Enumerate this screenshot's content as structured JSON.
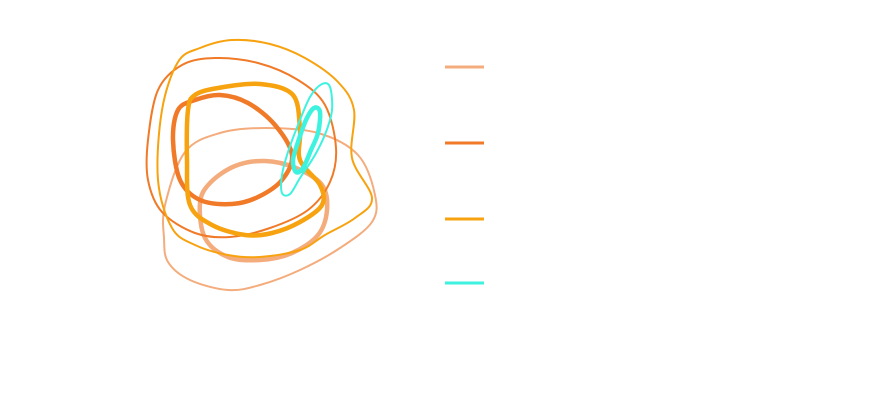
{
  "chart_data": {
    "type": "contour",
    "title": "",
    "xlabel": "",
    "ylabel": "",
    "axes_visible": false,
    "grid": false,
    "legend_placement": "right",
    "legend_labels_visible": false,
    "series": [
      {
        "color": "#F4AC7C",
        "levels": [
          {
            "level": "outer",
            "closed": true,
            "points": [
              [
                165,
                205
              ],
              [
                185,
                152
              ],
              [
                220,
                133
              ],
              [
                265,
                128
              ],
              [
                318,
                133
              ],
              [
                358,
                155
              ],
              [
                375,
                195
              ],
              [
                372,
                222
              ],
              [
                340,
                248
              ],
              [
                300,
                270
              ],
              [
                260,
                285
              ],
              [
                228,
                290
              ],
              [
                190,
                280
              ],
              [
                168,
                262
              ],
              [
                164,
                238
              ]
            ]
          },
          {
            "level": "inner",
            "closed": true,
            "points": [
              [
                200,
                203
              ],
              [
                210,
                183
              ],
              [
                235,
                166
              ],
              [
                265,
                161
              ],
              [
                296,
                168
              ],
              [
                322,
                185
              ],
              [
                327,
                210
              ],
              [
                318,
                235
              ],
              [
                292,
                253
              ],
              [
                260,
                260
              ],
              [
                228,
                257
              ],
              [
                205,
                238
              ]
            ]
          }
        ]
      },
      {
        "color": "#F07A28",
        "levels": [
          {
            "level": "outer",
            "closed": true,
            "points": [
              [
                148,
                140
              ],
              [
                158,
                90
              ],
              [
                182,
                65
              ],
              [
                215,
                58
              ],
              [
                258,
                63
              ],
              [
                298,
                80
              ],
              [
                325,
                105
              ],
              [
                336,
                148
              ],
              [
                330,
                182
              ],
              [
                308,
                210
              ],
              [
                270,
                228
              ],
              [
                230,
                237
              ],
              [
                195,
                233
              ],
              [
                162,
                212
              ],
              [
                148,
                180
              ]
            ]
          },
          {
            "level": "inner",
            "closed": true,
            "points": [
              [
                173,
                140
              ],
              [
                178,
                110
              ],
              [
                195,
                100
              ],
              [
                220,
                95
              ],
              [
                248,
                103
              ],
              [
                275,
                125
              ],
              [
                292,
                155
              ],
              [
                282,
                180
              ],
              [
                258,
                197
              ],
              [
                232,
                204
              ],
              [
                200,
                200
              ],
              [
                180,
                180
              ]
            ]
          }
        ]
      },
      {
        "color": "#F7A20F",
        "levels": [
          {
            "level": "outer",
            "closed": true,
            "points": [
              [
                162,
                110
              ],
              [
                178,
                62
              ],
              [
                200,
                48
              ],
              [
                232,
                40
              ],
              [
                270,
                44
              ],
              [
                305,
                58
              ],
              [
                338,
                82
              ],
              [
                354,
                110
              ],
              [
                352,
                158
              ],
              [
                372,
                198
              ],
              [
                355,
                218
              ],
              [
                325,
                235
              ],
              [
                300,
                250
              ],
              [
                260,
                257
              ],
              [
                228,
                255
              ],
              [
                195,
                245
              ],
              [
                172,
                228
              ],
              [
                158,
                180
              ]
            ]
          },
          {
            "level": "inner",
            "closed": true,
            "points": [
              [
                188,
                110
              ],
              [
                195,
                95
              ],
              [
                218,
                88
              ],
              [
                260,
                84
              ],
              [
                293,
                95
              ],
              [
                300,
                130
              ],
              [
                300,
                160
              ],
              [
                320,
                185
              ],
              [
                322,
                205
              ],
              [
                300,
                222
              ],
              [
                272,
                233
              ],
              [
                245,
                235
              ],
              [
                212,
                225
              ],
              [
                190,
                205
              ],
              [
                187,
                160
              ]
            ]
          }
        ]
      },
      {
        "color": "#3EF2E0",
        "levels": [
          {
            "level": "outer",
            "closed": true,
            "points": [
              [
                282,
                175
              ],
              [
                288,
                152
              ],
              [
                298,
                125
              ],
              [
                310,
                97
              ],
              [
                322,
                84
              ],
              [
                330,
                87
              ],
              [
                332,
                110
              ],
              [
                326,
                132
              ],
              [
                315,
                155
              ],
              [
                300,
                178
              ],
              [
                290,
                194
              ],
              [
                282,
                193
              ]
            ]
          },
          {
            "level": "inner",
            "closed": true,
            "points": [
              [
                293,
                160
              ],
              [
                298,
                142
              ],
              [
                306,
                120
              ],
              [
                314,
                108
              ],
              [
                320,
                112
              ],
              [
                318,
                133
              ],
              [
                311,
                150
              ],
              [
                303,
                168
              ],
              [
                296,
                172
              ]
            ]
          }
        ]
      }
    ],
    "legend": [
      {
        "color": "#F4AC7C",
        "label": ""
      },
      {
        "color": "#F07A28",
        "label": ""
      },
      {
        "color": "#F7A20F",
        "label": ""
      },
      {
        "color": "#3EF2E0",
        "label": ""
      }
    ]
  }
}
